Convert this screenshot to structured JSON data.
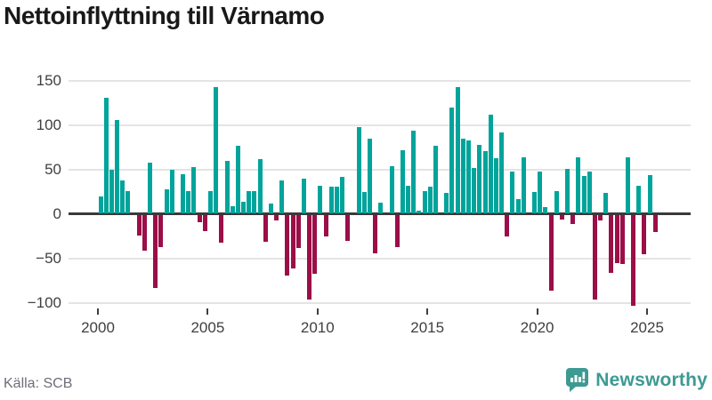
{
  "title": "Nettoinflyttning till Värnamo",
  "source": "Källa: SCB",
  "brand": {
    "name": "Newsworthy",
    "color": "#3D9A93"
  },
  "colors": {
    "positive": "#00A49B",
    "negative": "#9B0E47",
    "grid": "#E4E4E4",
    "zero_line": "#3A3A3A",
    "axis_text": "#3F3F3F",
    "source_text": "#6E6E78",
    "title_text": "#191919"
  },
  "chart_data": {
    "type": "bar",
    "title": "Nettoinflyttning till Värnamo",
    "x_unit": "quarter",
    "start": "2000-Q1",
    "end": "2025-Q2",
    "grid": "horizontal",
    "legend": "none",
    "ylim": [
      -115,
      158
    ],
    "y_ticks": [
      150,
      100,
      50,
      0,
      -50,
      -100
    ],
    "y_tick_labels": [
      "150",
      "100",
      "50",
      "0",
      "−50",
      "−100"
    ],
    "x_tick_years": [
      2000,
      2005,
      2010,
      2015,
      2020,
      2025
    ],
    "x_tick_labels": [
      "2000",
      "2005",
      "2010",
      "2015",
      "2020",
      "2025"
    ],
    "values": [
      19,
      130,
      49,
      105,
      37,
      25,
      0,
      -23,
      -40,
      57,
      -82,
      -36,
      27,
      49,
      0,
      44,
      25,
      52,
      -8,
      -18,
      25,
      142,
      -31,
      59,
      8,
      76,
      13,
      25,
      25,
      61,
      -30,
      11,
      -6,
      37,
      -68,
      -60,
      -37,
      39,
      -95,
      -66,
      31,
      -24,
      30,
      30,
      41,
      -29,
      0,
      97,
      24,
      84,
      -43,
      12,
      0,
      53,
      -36,
      71,
      31,
      93,
      3,
      25,
      30,
      76,
      0,
      23,
      119,
      142,
      84,
      82,
      51,
      77,
      70,
      111,
      62,
      91,
      -24,
      47,
      16,
      63,
      0,
      24,
      47,
      7,
      -85,
      25,
      -5,
      50,
      -10,
      63,
      42,
      47,
      -95,
      -6,
      23,
      -65,
      -54,
      -55,
      63,
      -102,
      31,
      -44,
      43,
      -19
    ]
  }
}
